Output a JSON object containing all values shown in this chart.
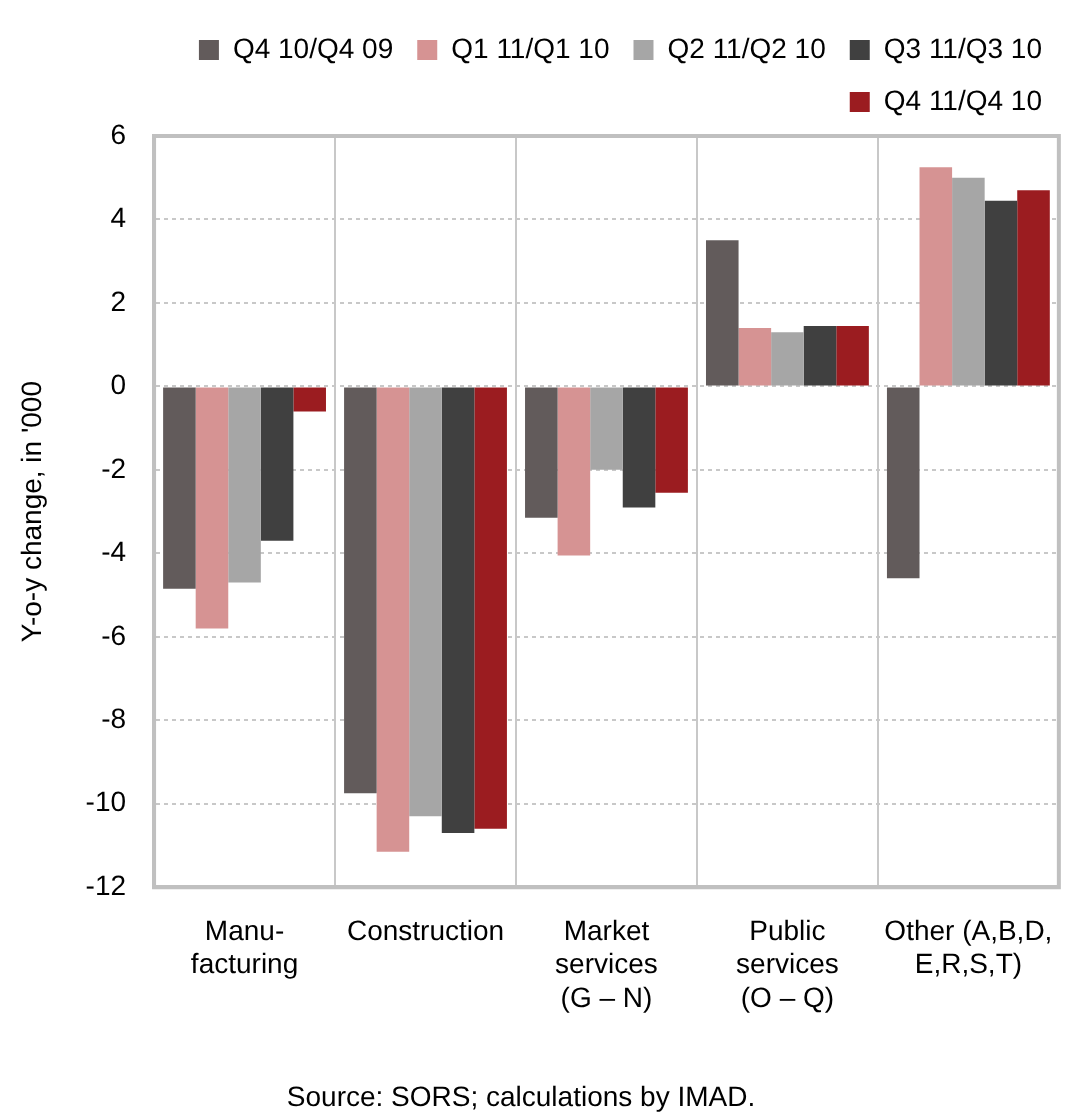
{
  "chart_data": {
    "type": "bar",
    "categories": [
      "Manu-\nfacturing",
      "Construction",
      "Market\nservices\n(G – N)",
      "Public\nservices\n(O – Q)",
      "Other (A,B,D,\nE,R,S,T)"
    ],
    "series": [
      {
        "name": "Q4 10/Q4 09",
        "color": "#625b5b",
        "values": [
          -4.85,
          -9.75,
          -3.15,
          3.5,
          -4.6
        ]
      },
      {
        "name": "Q1 11/Q1 10",
        "color": "#d69393",
        "values": [
          -5.8,
          -11.15,
          -4.05,
          1.4,
          5.25
        ]
      },
      {
        "name": "Q2 11/Q2 10",
        "color": "#a6a6a6",
        "values": [
          -4.7,
          -10.3,
          -2.0,
          1.3,
          5.0
        ]
      },
      {
        "name": "Q3 11/Q3 10",
        "color": "#404040",
        "values": [
          -3.7,
          -10.7,
          -2.9,
          1.45,
          4.45
        ]
      },
      {
        "name": "Q4 11/Q4 10",
        "color": "#9b1c20",
        "values": [
          -0.6,
          -10.6,
          -2.55,
          1.45,
          4.7
        ]
      }
    ],
    "ylabel": "Y-o-y change, in '000",
    "ylim": [
      -12,
      6
    ],
    "yticks": [
      -12,
      -10,
      -8,
      -6,
      -4,
      -2,
      0,
      2,
      4,
      6
    ],
    "grid": true,
    "legend": "top",
    "annotations": [
      "Source: SORS; calculations by IMAD."
    ]
  }
}
